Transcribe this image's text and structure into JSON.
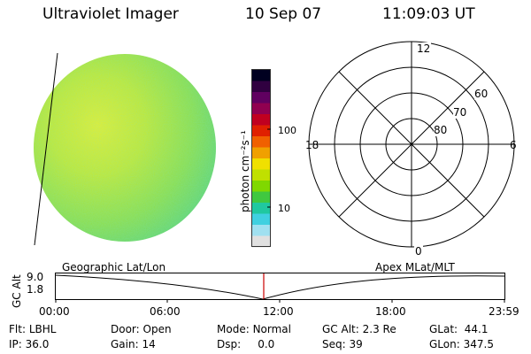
{
  "header": {
    "title": "Ultraviolet Imager",
    "date": "10 Sep 07",
    "time": "11:09:03 UT"
  },
  "colorbar": {
    "unit_label": "photon cm⁻²s⁻¹",
    "ticks": [
      "100",
      "10"
    ],
    "colors": [
      "#000020",
      "#300040",
      "#600060",
      "#900050",
      "#c00020",
      "#e02000",
      "#f06000",
      "#f0a000",
      "#f0e000",
      "#c0e000",
      "#80d800",
      "#40c840",
      "#20c8a0",
      "#40d0e0",
      "#a0e0f0",
      "#e0e0e0"
    ]
  },
  "polar_plot": {
    "mlt_labels": {
      "top": "12",
      "right": "6",
      "bottom": "0",
      "left": "18"
    },
    "lat_labels": [
      "60",
      "70",
      "80"
    ]
  },
  "timeline": {
    "left_label": "Geographic Lat/Lon",
    "right_label": "Apex  MLat/MLT",
    "y_axis_label": "GC Alt",
    "y_ticks": [
      "9.0",
      "1.8"
    ],
    "x_ticks": [
      "00:00",
      "06:00",
      "12:00",
      "18:00",
      "23:59"
    ],
    "current_marker_color": "#cc0000"
  },
  "status": {
    "row1": [
      {
        "key": "Flt:",
        "value": "LBHL"
      },
      {
        "key": "Door:",
        "value": "Open"
      },
      {
        "key": "Mode:",
        "value": "Normal"
      },
      {
        "key": "GC Alt:",
        "value": "2.3 Re"
      },
      {
        "key": "GLat:",
        "value": "44.1"
      }
    ],
    "row2": [
      {
        "key": "IP:",
        "value": "36.0"
      },
      {
        "key": "Gain:",
        "value": "14"
      },
      {
        "key": "Dsp:",
        "value": "0.0"
      },
      {
        "key": "Seq:",
        "value": "39"
      },
      {
        "key": "GLon:",
        "value": "347.5"
      }
    ]
  }
}
